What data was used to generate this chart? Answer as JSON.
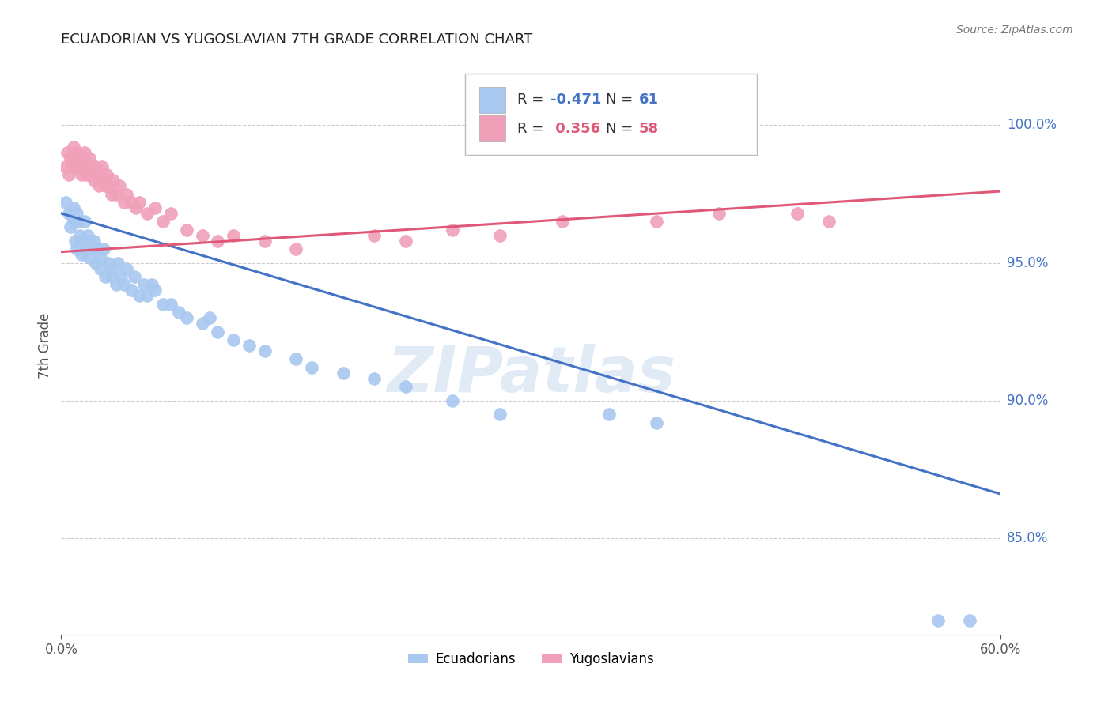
{
  "title": "ECUADORIAN VS YUGOSLAVIAN 7TH GRADE CORRELATION CHART",
  "source": "Source: ZipAtlas.com",
  "ylabel": "7th Grade",
  "y_tick_labels": [
    "85.0%",
    "90.0%",
    "95.0%",
    "100.0%"
  ],
  "y_tick_values": [
    0.85,
    0.9,
    0.95,
    1.0
  ],
  "x_min": 0.0,
  "x_max": 0.6,
  "y_min": 0.815,
  "y_max": 1.025,
  "blue_R": -0.471,
  "blue_N": 61,
  "pink_R": 0.356,
  "pink_N": 58,
  "blue_color": "#A8C8F0",
  "blue_line_color": "#4472C4",
  "pink_color": "#F0A0B8",
  "pink_line_color": "#E05878",
  "watermark": "ZIPatlas",
  "legend_ecuadorians": "Ecuadorians",
  "legend_yugoslavians": "Yugoslavians",
  "blue_line_x0": 0.0,
  "blue_line_y0": 0.968,
  "blue_line_x1": 0.6,
  "blue_line_y1": 0.866,
  "pink_line_x0": 0.0,
  "pink_line_y0": 0.954,
  "pink_line_x1": 0.6,
  "pink_line_y1": 0.976,
  "blue_scatter_x": [
    0.003,
    0.005,
    0.006,
    0.008,
    0.008,
    0.009,
    0.01,
    0.01,
    0.011,
    0.012,
    0.013,
    0.013,
    0.015,
    0.016,
    0.017,
    0.018,
    0.018,
    0.02,
    0.021,
    0.022,
    0.023,
    0.025,
    0.025,
    0.027,
    0.028,
    0.03,
    0.032,
    0.033,
    0.035,
    0.036,
    0.038,
    0.04,
    0.042,
    0.045,
    0.047,
    0.05,
    0.053,
    0.055,
    0.058,
    0.06,
    0.065,
    0.07,
    0.075,
    0.08,
    0.09,
    0.095,
    0.1,
    0.11,
    0.12,
    0.13,
    0.15,
    0.16,
    0.18,
    0.2,
    0.22,
    0.25,
    0.28,
    0.35,
    0.38,
    0.56,
    0.58
  ],
  "blue_scatter_y": [
    0.972,
    0.968,
    0.963,
    0.97,
    0.965,
    0.958,
    0.968,
    0.955,
    0.965,
    0.96,
    0.958,
    0.953,
    0.965,
    0.955,
    0.96,
    0.952,
    0.958,
    0.955,
    0.958,
    0.95,
    0.955,
    0.952,
    0.948,
    0.955,
    0.945,
    0.95,
    0.945,
    0.948,
    0.942,
    0.95,
    0.945,
    0.942,
    0.948,
    0.94,
    0.945,
    0.938,
    0.942,
    0.938,
    0.942,
    0.94,
    0.935,
    0.935,
    0.932,
    0.93,
    0.928,
    0.93,
    0.925,
    0.922,
    0.92,
    0.918,
    0.915,
    0.912,
    0.91,
    0.908,
    0.905,
    0.9,
    0.895,
    0.895,
    0.892,
    0.82,
    0.82
  ],
  "pink_scatter_x": [
    0.003,
    0.004,
    0.005,
    0.006,
    0.007,
    0.008,
    0.009,
    0.01,
    0.01,
    0.011,
    0.012,
    0.013,
    0.014,
    0.015,
    0.015,
    0.016,
    0.017,
    0.018,
    0.019,
    0.02,
    0.021,
    0.022,
    0.023,
    0.024,
    0.025,
    0.026,
    0.027,
    0.028,
    0.029,
    0.03,
    0.032,
    0.033,
    0.035,
    0.037,
    0.04,
    0.042,
    0.045,
    0.048,
    0.05,
    0.055,
    0.06,
    0.065,
    0.07,
    0.08,
    0.09,
    0.1,
    0.11,
    0.13,
    0.15,
    0.2,
    0.22,
    0.25,
    0.28,
    0.32,
    0.38,
    0.42,
    0.47,
    0.49
  ],
  "pink_scatter_y": [
    0.985,
    0.99,
    0.982,
    0.988,
    0.985,
    0.992,
    0.988,
    0.985,
    0.99,
    0.988,
    0.985,
    0.982,
    0.988,
    0.985,
    0.99,
    0.982,
    0.985,
    0.988,
    0.982,
    0.985,
    0.98,
    0.985,
    0.982,
    0.978,
    0.982,
    0.985,
    0.98,
    0.978,
    0.982,
    0.978,
    0.975,
    0.98,
    0.975,
    0.978,
    0.972,
    0.975,
    0.972,
    0.97,
    0.972,
    0.968,
    0.97,
    0.965,
    0.968,
    0.962,
    0.96,
    0.958,
    0.96,
    0.958,
    0.955,
    0.96,
    0.958,
    0.962,
    0.96,
    0.965,
    0.965,
    0.968,
    0.968,
    0.965
  ]
}
